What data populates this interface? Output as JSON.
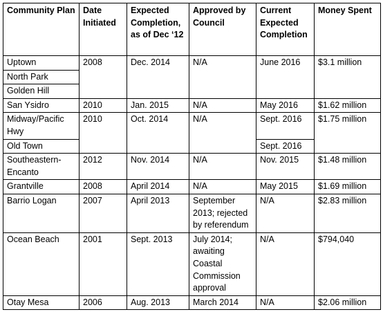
{
  "headers": [
    "Community Plan",
    "Date Initiated",
    "Expected Completion, as of Dec ‘12",
    "Approved by Council",
    "Current Expected Completion",
    "Money Spent"
  ],
  "rows": [
    {
      "community": "Uptown",
      "initiated": "2008",
      "expected": "Dec. 2014",
      "approved": "N/A",
      "current": "June 2016",
      "money": "$3.1 million"
    },
    {
      "community": "North Park"
    },
    {
      "community": "Golden Hill"
    },
    {
      "community": "San Ysidro",
      "initiated": "2010",
      "expected": "Jan. 2015",
      "approved": "N/A",
      "current": "May 2016",
      "money": "$1.62 million"
    },
    {
      "community": "Midway/Pacific Hwy",
      "initiated": "2010",
      "expected": "Oct. 2014",
      "approved": "N/A",
      "current": "Sept. 2016",
      "money": "$1.75 million"
    },
    {
      "community": "Old Town",
      "current": "Sept. 2016"
    },
    {
      "community": "Southeastern-Encanto",
      "initiated": "2012",
      "expected": "Nov. 2014",
      "approved": "N/A",
      "current": "Nov. 2015",
      "money": "$1.48 million"
    },
    {
      "community": "Grantville",
      "initiated": "2008",
      "expected": "April 2014",
      "approved": "N/A",
      "current": "May 2015",
      "money": "$1.69 million"
    },
    {
      "community": "Barrio Logan",
      "initiated": "2007",
      "expected": "April 2013",
      "approved": "September 2013; rejected by referendum",
      "current": "N/A",
      "money": "$2.83 million"
    },
    {
      "community": "Ocean Beach",
      "initiated": "2001",
      "expected": "Sept. 2013",
      "approved": "July 2014; awaiting Coastal Commission approval",
      "current": "N/A",
      "money": "$794,040"
    },
    {
      "community": "Otay Mesa",
      "initiated": "2006",
      "expected": "Aug. 2013",
      "approved": "March 2014",
      "current": "N/A",
      "money": "$2.06 million"
    }
  ]
}
